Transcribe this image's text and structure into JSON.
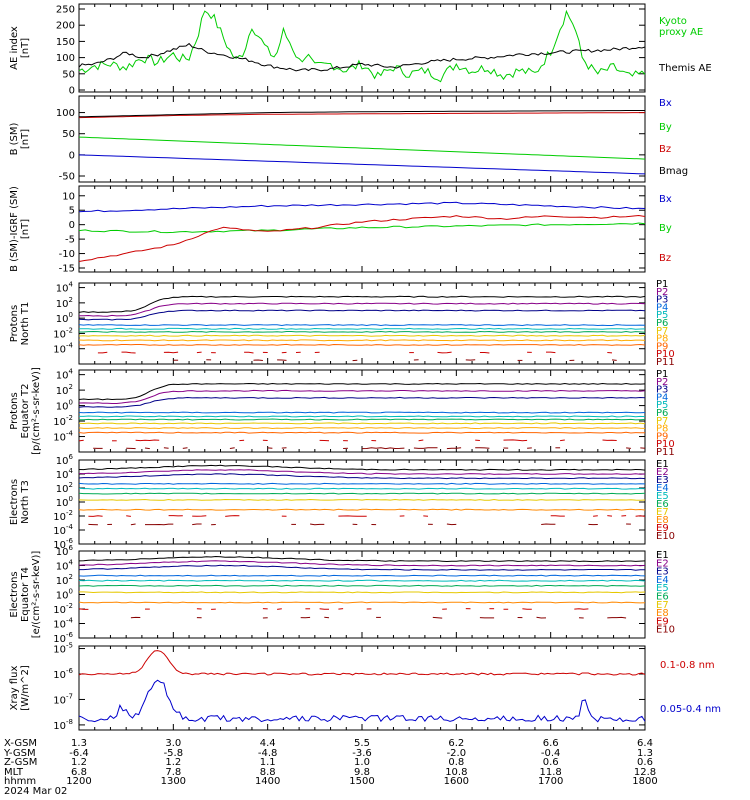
{
  "colors": {
    "green": "#00cc00",
    "black": "#000000",
    "blue": "#0000cc",
    "red": "#cc0000",
    "orange": "#ff8800",
    "yellow": "#e6c800",
    "cyan": "#00bbbb",
    "teal": "#00aa88",
    "purple": "#880088",
    "navy": "#000088",
    "darkred": "#990000",
    "lightgreen": "#44dd44"
  },
  "chart_data": [
    {
      "type": "line",
      "panel": "ae",
      "ylabel": [
        "AE index",
        "[nT]"
      ],
      "ylim": [
        0,
        250
      ],
      "yticks": [
        "250",
        "200",
        "150",
        "100",
        "50",
        "0"
      ],
      "series": [
        {
          "name": "Kyoto proxy AE",
          "color": "#00cc00",
          "x": [
            1200,
            1210,
            1220,
            1230,
            1240,
            1250,
            1300,
            1305,
            1310,
            1315,
            1320,
            1325,
            1330,
            1335,
            1340,
            1345,
            1350,
            1355,
            1400,
            1405,
            1410,
            1415,
            1420,
            1425,
            1430,
            1440,
            1450,
            1500,
            1510,
            1520,
            1530,
            1540,
            1550,
            1600,
            1610,
            1620,
            1630,
            1640,
            1650,
            1700,
            1710,
            1715,
            1720,
            1725,
            1730,
            1740,
            1750,
            1800
          ],
          "y": [
            60,
            75,
            80,
            70,
            100,
            85,
            110,
            95,
            100,
            160,
            248,
            230,
            180,
            130,
            90,
            120,
            200,
            160,
            120,
            100,
            180,
            140,
            90,
            110,
            70,
            80,
            60,
            80,
            40,
            70,
            50,
            60,
            40,
            80,
            60,
            70,
            45,
            60,
            50,
            120,
            240,
            200,
            100,
            70,
            50,
            70,
            40,
            50
          ]
        },
        {
          "name": "Themis AE",
          "color": "#000000",
          "x": [
            1200,
            1210,
            1220,
            1230,
            1240,
            1250,
            1300,
            1310,
            1320,
            1330,
            1340,
            1350,
            1400,
            1420,
            1440,
            1500,
            1520,
            1540,
            1600,
            1620,
            1640,
            1700,
            1720,
            1740,
            1800
          ],
          "y": [
            75,
            80,
            95,
            115,
            100,
            110,
            125,
            140,
            120,
            110,
            100,
            90,
            75,
            60,
            65,
            80,
            70,
            85,
            95,
            100,
            110,
            115,
            120,
            125,
            135
          ]
        }
      ],
      "legend": [
        "Kyoto",
        "proxy AE",
        "Themis AE"
      ]
    },
    {
      "type": "line",
      "panel": "b_sm",
      "ylabel": [
        "B (SM)",
        "[nT]"
      ],
      "ylim": [
        -50,
        125
      ],
      "yticks": [
        "100",
        "50",
        "0",
        "-50"
      ],
      "series": [
        {
          "name": "Bx",
          "color": "#0000cc",
          "x": [
            1200,
            1800
          ],
          "y": [
            0,
            -45
          ]
        },
        {
          "name": "By",
          "color": "#00cc00",
          "x": [
            1200,
            1800
          ],
          "y": [
            42,
            -10
          ]
        },
        {
          "name": "Bz",
          "color": "#cc0000",
          "x": [
            1200,
            1300,
            1400,
            1500,
            1600,
            1700,
            1800
          ],
          "y": [
            88,
            93,
            96,
            97,
            98,
            99,
            100
          ]
        },
        {
          "name": "Bmag",
          "color": "#000000",
          "x": [
            1200,
            1300,
            1400,
            1500,
            1600,
            1700,
            1800
          ],
          "y": [
            90,
            95,
            100,
            102,
            103,
            104,
            105
          ]
        }
      ]
    },
    {
      "type": "line",
      "panel": "b_igrf",
      "ylabel": [
        "B (SM)-IGRF (SM)",
        "[nT]"
      ],
      "ylim": [
        -15,
        10
      ],
      "yticks": [
        "10",
        "5",
        "0",
        "-5",
        "-10",
        "-15"
      ],
      "series": [
        {
          "name": "Bx",
          "color": "#0000cc",
          "x": [
            1200,
            1300,
            1400,
            1500,
            1600,
            1700,
            1800
          ],
          "y": [
            4.5,
            5.5,
            6.5,
            7.0,
            7.5,
            6.5,
            5.5
          ]
        },
        {
          "name": "By",
          "color": "#00cc00",
          "x": [
            1200,
            1300,
            1400,
            1500,
            1600,
            1700,
            1800
          ],
          "y": [
            -2.0,
            -2.5,
            -2.0,
            -1.0,
            -0.5,
            0.0,
            0.5
          ]
        },
        {
          "name": "Bz",
          "color": "#cc0000",
          "x": [
            1200,
            1230,
            1300,
            1330,
            1400,
            1430,
            1500,
            1530,
            1600,
            1630,
            1700,
            1730,
            1800
          ],
          "y": [
            -12.5,
            -10,
            -7,
            -1,
            -2.5,
            -1,
            1,
            2,
            3,
            2,
            3,
            2.5,
            3
          ]
        }
      ]
    },
    {
      "type": "line",
      "panel": "protons_t1",
      "ylabel": [
        "Protons",
        "North T1"
      ],
      "ylim": [
        "1e-6",
        "1e4"
      ],
      "yticks": [
        "10^4",
        "10^2",
        "10^0",
        "10^-2",
        "10^-4"
      ],
      "legend": [
        "P1",
        "P2",
        "P3",
        "P4",
        "P5",
        "P6",
        "P7",
        "P8",
        "P9",
        "P10",
        "P11"
      ]
    },
    {
      "type": "line",
      "panel": "protons_t2",
      "ylabel": [
        "Protons",
        "Equator T2",
        "[p/(cm²-s-sr-keV)]"
      ],
      "ylim": [
        "1e-6",
        "1e4"
      ],
      "yticks": [
        "10^4",
        "10^2",
        "10^0",
        "10^-2",
        "10^-4"
      ],
      "legend": [
        "P1",
        "P2",
        "P3",
        "P4",
        "P5",
        "P6",
        "P7",
        "P8",
        "P9",
        "P10",
        "P11"
      ]
    },
    {
      "type": "line",
      "panel": "electrons_t3",
      "ylabel": [
        "Electrons",
        "North T3"
      ],
      "ylim": [
        "1e-6",
        "1e6"
      ],
      "yticks": [
        "10^6",
        "10^4",
        "10^2",
        "10^0",
        "10^-2",
        "10^-4",
        "10^-6"
      ],
      "legend": [
        "E1",
        "E2",
        "E3",
        "E4",
        "E5",
        "E6",
        "E7",
        "E8",
        "E9",
        "E10"
      ]
    },
    {
      "type": "line",
      "panel": "electrons_t4",
      "ylabel": [
        "Electrons",
        "Equator T4",
        "[e/(cm²-s-sr-keV)]"
      ],
      "ylim": [
        "1e-6",
        "1e6"
      ],
      "yticks": [
        "10^6",
        "10^4",
        "10^2",
        "10^0",
        "10^-2",
        "10^-4",
        "10^-6"
      ],
      "legend": [
        "E1",
        "E2",
        "E3",
        "E4",
        "E5",
        "E6",
        "E7",
        "E8",
        "E9",
        "E10"
      ]
    },
    {
      "type": "line",
      "panel": "xray",
      "ylabel": [
        "Xray flux",
        "[W/m^2]"
      ],
      "ylim": [
        "1e-8",
        "1e-5"
      ],
      "yticks": [
        "10^-5",
        "10^-6",
        "10^-7",
        "10^-8"
      ],
      "series": [
        {
          "name": "0.1-0.8 nm",
          "color": "#cc0000"
        },
        {
          "name": "0.05-0.4 nm",
          "color": "#0000cc"
        }
      ]
    }
  ],
  "x_axis": {
    "row_labels": [
      "X-GSM",
      "Y-GSM",
      "Z-GSM",
      "MLT",
      "hhmm",
      "2024 Mar 02"
    ],
    "columns": [
      [
        "1.3",
        "-6.4",
        "1.2",
        "6.8",
        "1200"
      ],
      [
        "3.0",
        "-5.8",
        "1.2",
        "7.8",
        "1300"
      ],
      [
        "4.4",
        "-4.8",
        "1.1",
        "8.8",
        "1400"
      ],
      [
        "5.5",
        "-3.6",
        "1.0",
        "9.8",
        "1500"
      ],
      [
        "6.2",
        "-2.0",
        "0.8",
        "10.8",
        "1600"
      ],
      [
        "6.6",
        "-0.4",
        "0.6",
        "11.8",
        "1700"
      ],
      [
        "6.4",
        "1.3",
        "0.6",
        "12.8",
        "1800"
      ]
    ]
  }
}
